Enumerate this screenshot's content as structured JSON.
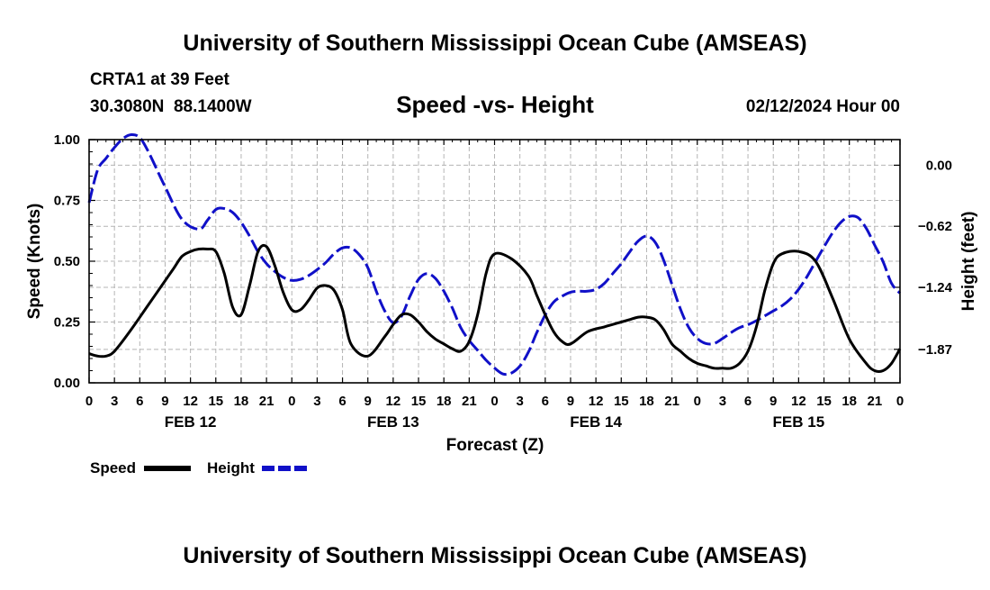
{
  "header": {
    "title": "University of Southern Mississippi Ocean Cube (AMSEAS)",
    "station": "CRTA1 at 39 Feet",
    "coords": "30.3080N  88.1400W",
    "chart_title": "Speed -vs- Height",
    "date": "02/12/2024 Hour 00"
  },
  "footer": {
    "title": "University of Southern Mississippi Ocean Cube (AMSEAS)"
  },
  "legend": {
    "speed_label": "Speed",
    "height_label": "Height",
    "speed_color": "#000000",
    "height_color": "#1010c8"
  },
  "chart_data": {
    "type": "line",
    "title": "Speed -vs- Height",
    "xlabel": "Forecast (Z)",
    "ylabel_left": "Speed (Knots)",
    "ylabel_right": "Height (feet)",
    "x_range_hours": [
      0,
      96
    ],
    "ylim_left": [
      0,
      1
    ],
    "ylim_right": [
      -2.21,
      0.26
    ],
    "grid": true,
    "x_ticks": [
      {
        "h": 0,
        "label": "0"
      },
      {
        "h": 3,
        "label": "3"
      },
      {
        "h": 6,
        "label": "6"
      },
      {
        "h": 9,
        "label": "9"
      },
      {
        "h": 12,
        "label": "12"
      },
      {
        "h": 15,
        "label": "15"
      },
      {
        "h": 18,
        "label": "18"
      },
      {
        "h": 21,
        "label": "21"
      },
      {
        "h": 24,
        "label": "0"
      },
      {
        "h": 27,
        "label": "3"
      },
      {
        "h": 30,
        "label": "6"
      },
      {
        "h": 33,
        "label": "9"
      },
      {
        "h": 36,
        "label": "12"
      },
      {
        "h": 39,
        "label": "15"
      },
      {
        "h": 42,
        "label": "18"
      },
      {
        "h": 45,
        "label": "21"
      },
      {
        "h": 48,
        "label": "0"
      },
      {
        "h": 51,
        "label": "3"
      },
      {
        "h": 54,
        "label": "6"
      },
      {
        "h": 57,
        "label": "9"
      },
      {
        "h": 60,
        "label": "12"
      },
      {
        "h": 63,
        "label": "15"
      },
      {
        "h": 66,
        "label": "18"
      },
      {
        "h": 69,
        "label": "21"
      },
      {
        "h": 72,
        "label": "0"
      },
      {
        "h": 75,
        "label": "3"
      },
      {
        "h": 78,
        "label": "6"
      },
      {
        "h": 81,
        "label": "9"
      },
      {
        "h": 84,
        "label": "12"
      },
      {
        "h": 87,
        "label": "15"
      },
      {
        "h": 90,
        "label": "18"
      },
      {
        "h": 93,
        "label": "21"
      },
      {
        "h": 96,
        "label": "0"
      }
    ],
    "day_labels": [
      {
        "h": 12,
        "label": "FEB 12"
      },
      {
        "h": 36,
        "label": "FEB 13"
      },
      {
        "h": 60,
        "label": "FEB 14"
      },
      {
        "h": 84,
        "label": "FEB 15"
      }
    ],
    "y_left_ticks": [
      {
        "v": 0,
        "label": "0.00"
      },
      {
        "v": 0.25,
        "label": "0.25"
      },
      {
        "v": 0.5,
        "label": "0.50"
      },
      {
        "v": 0.75,
        "label": "0.75"
      },
      {
        "v": 1.0,
        "label": "1.00"
      }
    ],
    "y_right_ticks": [
      {
        "v": 0.0,
        "label": "0.00"
      },
      {
        "v": -0.62,
        "label": "-0.62"
      },
      {
        "v": -1.24,
        "label": "-1.24"
      },
      {
        "v": -1.87,
        "label": "-1.87"
      }
    ],
    "series": [
      {
        "name": "Speed",
        "axis": "left",
        "color": "#000000",
        "dashed": false,
        "x": [
          0,
          1,
          2,
          3,
          5,
          7,
          9,
          10,
          11,
          12,
          13,
          14,
          15,
          16,
          17,
          18,
          19,
          20,
          21,
          22,
          23,
          24,
          25,
          26,
          27,
          28,
          29,
          30,
          31,
          33,
          35,
          36,
          37,
          38,
          39,
          40,
          41,
          42,
          43,
          44,
          45,
          46,
          47,
          48,
          50,
          52,
          53,
          54,
          55,
          56,
          57,
          59,
          61,
          62,
          63,
          64,
          65,
          66,
          67,
          68,
          69,
          70,
          71,
          72,
          73,
          74,
          75,
          76,
          77,
          78,
          79,
          80,
          81,
          82,
          84,
          86,
          88,
          90,
          92,
          93,
          94,
          95,
          96
        ],
        "values": [
          0.12,
          0.11,
          0.11,
          0.13,
          0.22,
          0.32,
          0.42,
          0.47,
          0.52,
          0.54,
          0.55,
          0.55,
          0.54,
          0.45,
          0.31,
          0.28,
          0.4,
          0.54,
          0.56,
          0.48,
          0.37,
          0.3,
          0.3,
          0.34,
          0.39,
          0.4,
          0.38,
          0.3,
          0.16,
          0.11,
          0.19,
          0.24,
          0.28,
          0.28,
          0.25,
          0.21,
          0.18,
          0.16,
          0.14,
          0.13,
          0.17,
          0.28,
          0.45,
          0.53,
          0.51,
          0.44,
          0.36,
          0.28,
          0.21,
          0.17,
          0.16,
          0.21,
          0.23,
          0.24,
          0.25,
          0.26,
          0.27,
          0.27,
          0.26,
          0.22,
          0.16,
          0.13,
          0.1,
          0.08,
          0.07,
          0.06,
          0.06,
          0.06,
          0.08,
          0.13,
          0.23,
          0.38,
          0.49,
          0.53,
          0.54,
          0.5,
          0.35,
          0.18,
          0.08,
          0.05,
          0.05,
          0.08,
          0.14
        ]
      },
      {
        "name": "Height",
        "axis": "right",
        "color": "#1010c8",
        "dashed": true,
        "x": [
          0,
          1,
          2,
          3,
          4,
          5,
          6,
          7,
          9,
          11,
          13,
          14,
          15,
          16,
          17,
          18,
          19,
          20,
          21,
          22,
          23,
          24,
          25,
          26,
          27,
          28,
          29,
          30,
          31,
          32,
          33,
          34,
          35,
          36,
          37,
          38,
          39,
          40,
          41,
          42,
          43,
          44,
          45,
          46,
          47,
          48,
          49,
          50,
          51,
          52,
          53,
          54,
          55,
          56,
          57,
          58,
          59,
          60,
          61,
          62,
          63,
          64,
          65,
          66,
          67,
          68,
          69,
          70,
          71,
          72,
          73,
          74,
          75,
          76,
          77,
          78,
          79,
          80,
          81,
          82,
          83,
          84,
          85,
          86,
          87,
          88,
          89,
          90,
          91,
          92,
          93,
          94,
          95,
          96
        ],
        "values": [
          -0.38,
          -0.05,
          0.07,
          0.18,
          0.27,
          0.31,
          0.28,
          0.14,
          -0.22,
          -0.55,
          -0.65,
          -0.56,
          -0.45,
          -0.44,
          -0.48,
          -0.58,
          -0.72,
          -0.88,
          -1.0,
          -1.08,
          -1.14,
          -1.17,
          -1.16,
          -1.12,
          -1.06,
          -0.99,
          -0.9,
          -0.84,
          -0.84,
          -0.91,
          -1.04,
          -1.28,
          -1.48,
          -1.6,
          -1.53,
          -1.33,
          -1.16,
          -1.1,
          -1.15,
          -1.28,
          -1.45,
          -1.65,
          -1.78,
          -1.88,
          -1.98,
          -2.06,
          -2.12,
          -2.11,
          -2.04,
          -1.9,
          -1.7,
          -1.52,
          -1.39,
          -1.33,
          -1.29,
          -1.28,
          -1.28,
          -1.26,
          -1.2,
          -1.1,
          -1.0,
          -0.88,
          -0.77,
          -0.72,
          -0.78,
          -0.96,
          -1.21,
          -1.46,
          -1.65,
          -1.76,
          -1.81,
          -1.81,
          -1.76,
          -1.7,
          -1.65,
          -1.62,
          -1.58,
          -1.53,
          -1.48,
          -1.43,
          -1.36,
          -1.26,
          -1.13,
          -0.98,
          -0.83,
          -0.69,
          -0.58,
          -0.52,
          -0.53,
          -0.64,
          -0.81,
          -0.98,
          -1.2,
          -1.3
        ]
      }
    ]
  }
}
